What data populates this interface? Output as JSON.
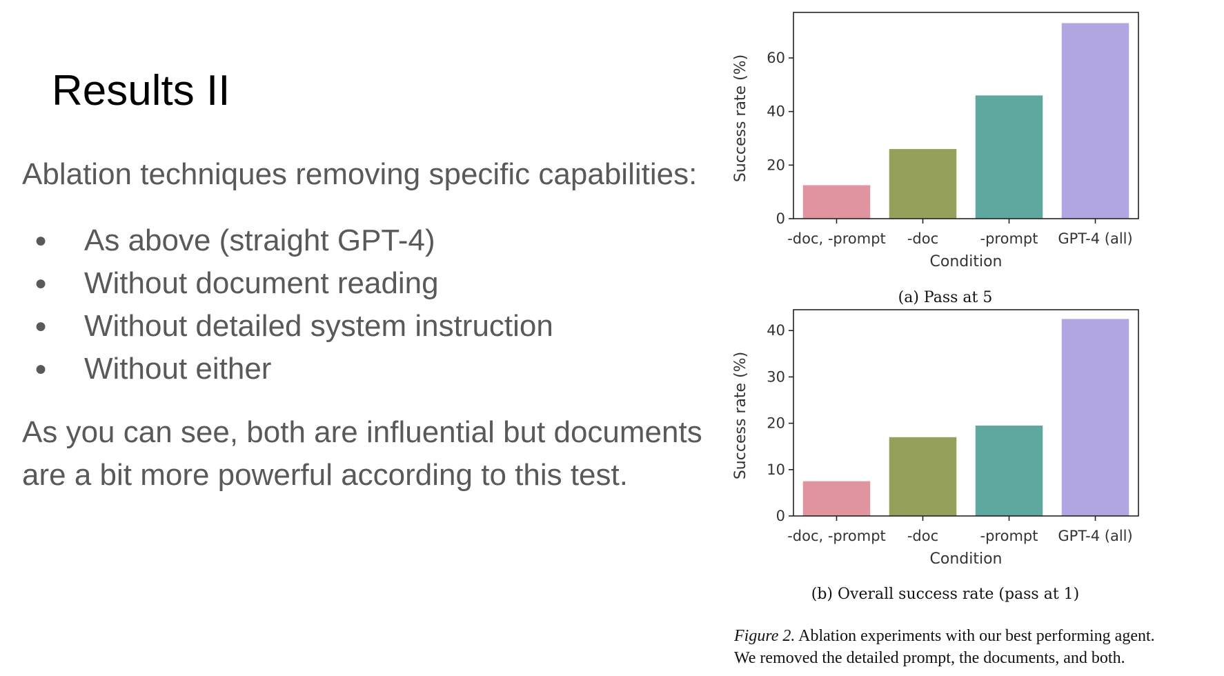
{
  "slide": {
    "title": "Results II",
    "intro": "Ablation techniques removing specific capabilities:",
    "bullets": [
      "As above (straight GPT-4)",
      "Without document reading",
      "Without detailed system instruction",
      "Without either"
    ],
    "bullet_glyph": "●",
    "conclusion_line1": "As you can see, both are influential but documents",
    "conclusion_line2": "are a bit more powerful according to this test."
  },
  "figure": {
    "caption_label": "Figure 2.",
    "caption_line1_rest": " Ablation experiments with our best performing agent.",
    "caption_line2": "We removed the detailed prompt, the documents, and both."
  },
  "chart_data": [
    {
      "type": "bar",
      "subcaption": "(a) Pass at 5",
      "categories": [
        "-doc, -prompt",
        "-doc",
        "-prompt",
        "GPT-4 (all)"
      ],
      "values": [
        12.5,
        26,
        46,
        73
      ],
      "colors": [
        "#e0949f",
        "#95a05a",
        "#5fa8a0",
        "#b3a4e2"
      ],
      "xlabel": "Condition",
      "ylabel": "Success rate (%)",
      "ylim": [
        0,
        77
      ],
      "yticks": [
        0,
        20,
        40,
        60
      ],
      "grid": false
    },
    {
      "type": "bar",
      "subcaption": "(b) Overall success rate (pass at 1)",
      "categories": [
        "-doc, -prompt",
        "-doc",
        "-prompt",
        "GPT-4 (all)"
      ],
      "values": [
        7.5,
        17,
        19.5,
        42.5
      ],
      "colors": [
        "#e0949f",
        "#95a05a",
        "#5fa8a0",
        "#b3a4e2"
      ],
      "xlabel": "Condition",
      "ylabel": "Success rate (%)",
      "ylim": [
        0,
        44.5
      ],
      "yticks": [
        0,
        10,
        20,
        30,
        40
      ],
      "grid": false
    }
  ]
}
